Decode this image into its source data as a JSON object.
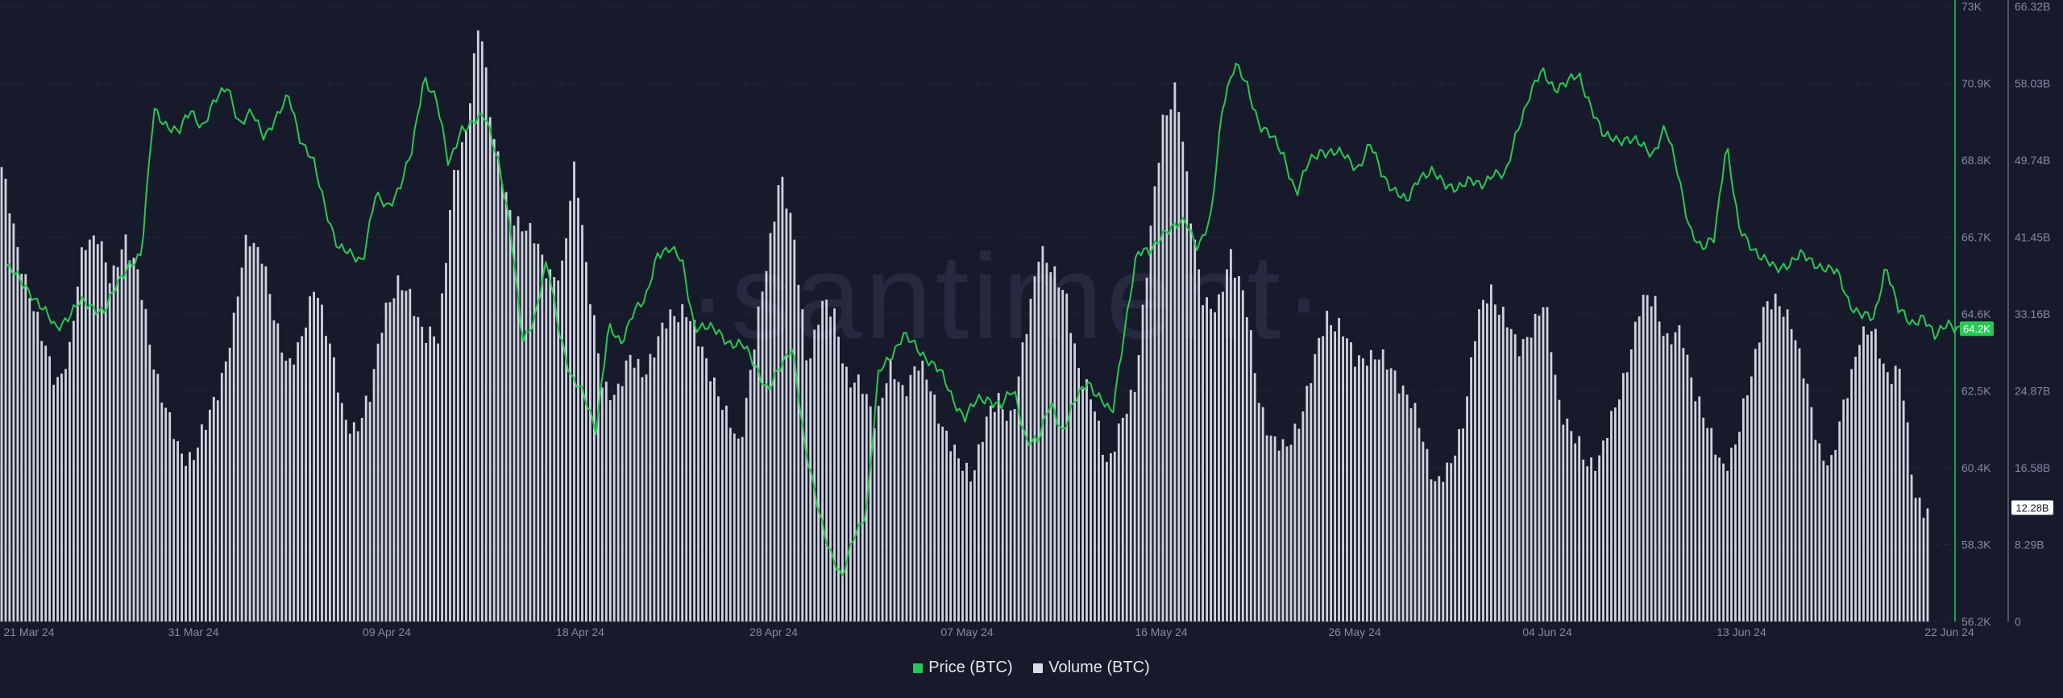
{
  "watermark": "·santiment·",
  "legend": {
    "price_label": "Price (BTC)",
    "volume_label": "Volume (BTC)"
  },
  "colors": {
    "background": "#171a2b",
    "price": "#26c953",
    "volume": "#dadde8",
    "price_badge": "#26c953",
    "volume_badge": "#ffffff"
  },
  "chart_data": {
    "type": "bar",
    "x_ticks": [
      "21 Mar 24",
      "31 Mar 24",
      "09 Apr 24",
      "18 Apr 24",
      "28 Apr 24",
      "07 May 24",
      "16 May 24",
      "26 May 24",
      "04 Jun 24",
      "13 Jun 24",
      "22 Jun 24"
    ],
    "price_axis": {
      "ticks": [
        "73K",
        "70.9K",
        "68.8K",
        "66.7K",
        "64.6K",
        "62.5K",
        "60.4K",
        "58.3K",
        "56.2K"
      ],
      "range": [
        56200,
        73000
      ]
    },
    "volume_axis": {
      "ticks": [
        "66.32B",
        "58.03B",
        "49.74B",
        "41.45B",
        "33.16B",
        "24.87B",
        "16.58B",
        "8.29B",
        "0"
      ],
      "range": [
        0,
        66.32
      ]
    },
    "last_price_label": "64.2K",
    "last_volume_label": "12.28B",
    "price_anchors": [
      [
        0,
        65.9
      ],
      [
        1,
        65.2
      ],
      [
        2,
        64.2
      ],
      [
        3,
        64.9
      ],
      [
        4,
        64.7
      ],
      [
        5,
        66.0
      ],
      [
        5.5,
        66.2
      ],
      [
        6,
        70.2
      ],
      [
        6.5,
        69.8
      ],
      [
        7,
        69.5
      ],
      [
        7.5,
        70.2
      ],
      [
        8,
        69.7
      ],
      [
        8.5,
        70.4
      ],
      [
        9,
        70.9
      ],
      [
        9.5,
        69.7
      ],
      [
        10,
        70.1
      ],
      [
        10.5,
        69.5
      ],
      [
        11,
        69.9
      ],
      [
        11.5,
        70.6
      ],
      [
        12,
        69.3
      ],
      [
        12.5,
        68.7
      ],
      [
        13,
        67.5
      ],
      [
        13.5,
        66.4
      ],
      [
        14,
        66.2
      ],
      [
        14.5,
        66.1
      ],
      [
        15,
        67.8
      ],
      [
        15.5,
        67.5
      ],
      [
        16,
        68.1
      ],
      [
        16.5,
        69.0
      ],
      [
        17,
        71.1
      ],
      [
        17.5,
        70.5
      ],
      [
        18,
        68.6
      ],
      [
        18.5,
        69.7
      ],
      [
        19,
        69.8
      ],
      [
        19.5,
        70.0
      ],
      [
        20,
        68.9
      ],
      [
        20.5,
        66.9
      ],
      [
        21,
        63.9
      ],
      [
        21.5,
        64.5
      ],
      [
        22,
        66.0
      ],
      [
        22.5,
        64.2
      ],
      [
        23,
        62.8
      ],
      [
        23.5,
        62.4
      ],
      [
        24,
        61.5
      ],
      [
        24.5,
        64.2
      ],
      [
        25,
        63.8
      ],
      [
        25.5,
        64.7
      ],
      [
        26,
        64.9
      ],
      [
        26.5,
        66.3
      ],
      [
        27,
        66.4
      ],
      [
        27.5,
        66.0
      ],
      [
        28,
        64.3
      ],
      [
        28.5,
        64.2
      ],
      [
        29,
        64.1
      ],
      [
        29.5,
        63.8
      ],
      [
        30,
        63.7
      ],
      [
        30.5,
        63.2
      ],
      [
        31,
        62.5
      ],
      [
        31.5,
        63.1
      ],
      [
        32,
        63.8
      ],
      [
        32.5,
        60.9
      ],
      [
        33,
        59.4
      ],
      [
        33.5,
        58.2
      ],
      [
        34,
        57.3
      ],
      [
        34.5,
        58.6
      ],
      [
        35,
        59.2
      ],
      [
        35.5,
        63.0
      ],
      [
        36,
        63.5
      ],
      [
        36.5,
        64.0
      ],
      [
        37,
        63.7
      ],
      [
        37.5,
        63.4
      ],
      [
        38,
        63.0
      ],
      [
        38.5,
        62.3
      ],
      [
        39,
        61.8
      ],
      [
        39.5,
        62.2
      ],
      [
        40,
        62.3
      ],
      [
        40.5,
        62.1
      ],
      [
        41,
        62.5
      ],
      [
        41.5,
        61.2
      ],
      [
        42,
        61.1
      ],
      [
        42.5,
        62.2
      ],
      [
        43,
        61.4
      ],
      [
        43.5,
        62.2
      ],
      [
        44,
        62.8
      ],
      [
        44.5,
        62.3
      ],
      [
        45,
        61.8
      ],
      [
        45.5,
        64.2
      ],
      [
        46,
        66.2
      ],
      [
        46.5,
        66.3
      ],
      [
        47,
        66.8
      ],
      [
        47.5,
        66.9
      ],
      [
        48,
        67.2
      ],
      [
        48.5,
        66.4
      ],
      [
        49,
        67.1
      ],
      [
        49.5,
        70.4
      ],
      [
        50,
        71.4
      ],
      [
        50.5,
        70.8
      ],
      [
        51,
        69.8
      ],
      [
        51.5,
        69.4
      ],
      [
        52,
        68.9
      ],
      [
        52.5,
        67.9
      ],
      [
        53,
        68.7
      ],
      [
        53.5,
        69.1
      ],
      [
        54,
        69.0
      ],
      [
        54.5,
        68.9
      ],
      [
        55,
        68.6
      ],
      [
        55.5,
        69.2
      ],
      [
        56,
        68.4
      ],
      [
        56.5,
        68.0
      ],
      [
        57,
        67.6
      ],
      [
        57.5,
        68.4
      ],
      [
        58,
        68.5
      ],
      [
        58.5,
        68.1
      ],
      [
        59,
        68.1
      ],
      [
        59.5,
        68.2
      ],
      [
        60,
        68.1
      ],
      [
        60.5,
        68.5
      ],
      [
        61,
        68.3
      ],
      [
        61.5,
        69.7
      ],
      [
        62,
        70.6
      ],
      [
        62.5,
        71.2
      ],
      [
        63,
        70.8
      ],
      [
        63.5,
        70.9
      ],
      [
        64,
        71.1
      ],
      [
        64.5,
        70.3
      ],
      [
        65,
        69.4
      ],
      [
        65.5,
        69.4
      ],
      [
        66,
        69.4
      ],
      [
        66.5,
        69.2
      ],
      [
        67,
        69.0
      ],
      [
        67.5,
        69.7
      ],
      [
        68,
        68.5
      ],
      [
        68.5,
        67.0
      ],
      [
        69,
        66.3
      ],
      [
        69.5,
        66.7
      ],
      [
        70,
        69.3
      ],
      [
        70.5,
        66.9
      ],
      [
        71,
        66.5
      ],
      [
        71.5,
        66.1
      ],
      [
        72,
        65.8
      ],
      [
        72.5,
        66.0
      ],
      [
        73,
        66.2
      ],
      [
        73.5,
        66.0
      ],
      [
        74,
        65.9
      ],
      [
        74.5,
        65.7
      ],
      [
        75,
        64.9
      ],
      [
        75.5,
        64.6
      ],
      [
        76,
        64.4
      ],
      [
        76.5,
        66.0
      ],
      [
        77,
        64.7
      ],
      [
        77.5,
        64.3
      ],
      [
        78,
        64.6
      ],
      [
        78.5,
        63.9
      ],
      [
        79,
        64.4
      ],
      [
        79.5,
        64.2
      ]
    ],
    "volume_anchors": [
      [
        0,
        49
      ],
      [
        1,
        41
      ],
      [
        2,
        36
      ],
      [
        3,
        30
      ],
      [
        4,
        26
      ],
      [
        5,
        29
      ],
      [
        6,
        41
      ],
      [
        7,
        42
      ],
      [
        8,
        36
      ],
      [
        9,
        42
      ],
      [
        10,
        37
      ],
      [
        11,
        29
      ],
      [
        12,
        23
      ],
      [
        13,
        18
      ],
      [
        14,
        18
      ],
      [
        15,
        21
      ],
      [
        16,
        26
      ],
      [
        17,
        32
      ],
      [
        18,
        42
      ],
      [
        19,
        40
      ],
      [
        20,
        32
      ],
      [
        21,
        28
      ],
      [
        22,
        30
      ],
      [
        23,
        37
      ],
      [
        24,
        30
      ],
      [
        25,
        22
      ],
      [
        26,
        21
      ],
      [
        27,
        24
      ],
      [
        28,
        34
      ],
      [
        29,
        36
      ],
      [
        30,
        35
      ],
      [
        31,
        31
      ],
      [
        32,
        30
      ],
      [
        33,
        48
      ],
      [
        34,
        52
      ],
      [
        35,
        66
      ],
      [
        36,
        52
      ],
      [
        37,
        45
      ],
      [
        38,
        43
      ],
      [
        39,
        41
      ],
      [
        40,
        38
      ],
      [
        41,
        37
      ],
      [
        42,
        50
      ],
      [
        43,
        36
      ],
      [
        44,
        25
      ],
      [
        45,
        25
      ],
      [
        46,
        28
      ],
      [
        47,
        27
      ],
      [
        48,
        30
      ],
      [
        49,
        33
      ],
      [
        50,
        34
      ],
      [
        51,
        30
      ],
      [
        52,
        27
      ],
      [
        53,
        22
      ],
      [
        54,
        19
      ],
      [
        55,
        29
      ],
      [
        56,
        38
      ],
      [
        57,
        49
      ],
      [
        58,
        41
      ],
      [
        59,
        28
      ],
      [
        60,
        34
      ],
      [
        61,
        33
      ],
      [
        62,
        26
      ],
      [
        63,
        25
      ],
      [
        64,
        22
      ],
      [
        65,
        27
      ],
      [
        66,
        25
      ],
      [
        67,
        28
      ],
      [
        68,
        25
      ],
      [
        69,
        21
      ],
      [
        70,
        17
      ],
      [
        71,
        16
      ],
      [
        72,
        21
      ],
      [
        73,
        24
      ],
      [
        74,
        22
      ],
      [
        75,
        31
      ],
      [
        76,
        41
      ],
      [
        77,
        37
      ],
      [
        78,
        35
      ],
      [
        79,
        26
      ],
      [
        80,
        23
      ],
      [
        81,
        17
      ],
      [
        82,
        21
      ],
      [
        83,
        26
      ],
      [
        84,
        40
      ],
      [
        85,
        54
      ],
      [
        86,
        58
      ],
      [
        87,
        44
      ],
      [
        88,
        35
      ],
      [
        89,
        33
      ],
      [
        90,
        40
      ],
      [
        91,
        35
      ],
      [
        92,
        24
      ],
      [
        93,
        20
      ],
      [
        94,
        18
      ],
      [
        95,
        22
      ],
      [
        96,
        27
      ],
      [
        97,
        33
      ],
      [
        98,
        32
      ],
      [
        99,
        28
      ],
      [
        100,
        29
      ],
      [
        101,
        28
      ],
      [
        102,
        27
      ],
      [
        103,
        24
      ],
      [
        104,
        20
      ],
      [
        105,
        15
      ],
      [
        106,
        16
      ],
      [
        107,
        22
      ],
      [
        108,
        32
      ],
      [
        109,
        36
      ],
      [
        110,
        33
      ],
      [
        111,
        29
      ],
      [
        112,
        32
      ],
      [
        113,
        34
      ],
      [
        114,
        24
      ],
      [
        115,
        20
      ],
      [
        116,
        17
      ],
      [
        117,
        18
      ],
      [
        118,
        22
      ],
      [
        119,
        28
      ],
      [
        120,
        34
      ],
      [
        121,
        35
      ],
      [
        122,
        30
      ],
      [
        123,
        31
      ],
      [
        124,
        25
      ],
      [
        125,
        20
      ],
      [
        126,
        17
      ],
      [
        127,
        19
      ],
      [
        128,
        26
      ],
      [
        129,
        34
      ],
      [
        130,
        34
      ],
      [
        131,
        33
      ],
      [
        132,
        26
      ],
      [
        133,
        19
      ],
      [
        134,
        17
      ],
      [
        135,
        24
      ],
      [
        136,
        31
      ],
      [
        137,
        31
      ],
      [
        138,
        27
      ],
      [
        139,
        27
      ],
      [
        140,
        14
      ],
      [
        141,
        12
      ]
    ]
  }
}
